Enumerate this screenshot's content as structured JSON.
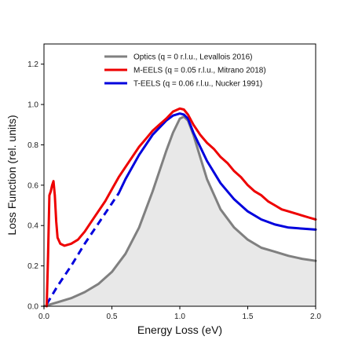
{
  "chart_data": {
    "type": "line",
    "xlabel": "Energy Loss (eV)",
    "ylabel": "Loss Function (rel. units)",
    "xlim": [
      0,
      2.0
    ],
    "ylim": [
      0,
      1.3
    ],
    "x_ticks": [
      {
        "value": 0.0,
        "label": "0.0"
      },
      {
        "value": 0.5,
        "label": "0.5"
      },
      {
        "value": 1.0,
        "label": "1.0"
      },
      {
        "value": 1.5,
        "label": "1.5"
      },
      {
        "value": 2.0,
        "label": "2.0"
      }
    ],
    "y_ticks": [
      {
        "value": 0.0,
        "label": "0.0"
      },
      {
        "value": 0.2,
        "label": "0.2"
      },
      {
        "value": 0.4,
        "label": "0.4"
      },
      {
        "value": 0.6,
        "label": "0.6"
      },
      {
        "value": 0.8,
        "label": "0.8"
      },
      {
        "value": 1.0,
        "label": "1.0"
      },
      {
        "value": 1.2,
        "label": "1.2"
      }
    ],
    "grid": false,
    "legend": {
      "position": "top-right",
      "entries": [
        {
          "text": "Optics    (q = 0 r.l.u., Levallois 2016)",
          "color": "#808080"
        },
        {
          "text": "M-EELS  (q = 0.05 r.l.u., Mitrano 2018)",
          "color": "#ee0000"
        },
        {
          "text": "T-EELS  (q = 0.06 r.l.u., Nucker 1991)",
          "color": "#0000dd"
        }
      ]
    },
    "series": [
      {
        "color": "#808080",
        "fill": "#e8e8e8",
        "style": "solid",
        "points": [
          [
            0.0,
            0.0
          ],
          [
            0.05,
            0.01
          ],
          [
            0.1,
            0.02
          ],
          [
            0.2,
            0.04
          ],
          [
            0.3,
            0.07
          ],
          [
            0.4,
            0.11
          ],
          [
            0.5,
            0.17
          ],
          [
            0.6,
            0.26
          ],
          [
            0.7,
            0.39
          ],
          [
            0.8,
            0.57
          ],
          [
            0.9,
            0.77
          ],
          [
            0.95,
            0.86
          ],
          [
            1.0,
            0.93
          ],
          [
            1.03,
            0.94
          ],
          [
            1.06,
            0.92
          ],
          [
            1.1,
            0.85
          ],
          [
            1.15,
            0.74
          ],
          [
            1.2,
            0.63
          ],
          [
            1.3,
            0.48
          ],
          [
            1.4,
            0.39
          ],
          [
            1.5,
            0.33
          ],
          [
            1.6,
            0.29
          ],
          [
            1.7,
            0.27
          ],
          [
            1.8,
            0.25
          ],
          [
            1.9,
            0.235
          ],
          [
            2.0,
            0.225
          ]
        ]
      },
      {
        "color": "#0000dd",
        "style": "dashed",
        "points": [
          [
            0.02,
            0.01
          ],
          [
            0.1,
            0.1
          ],
          [
            0.2,
            0.2
          ],
          [
            0.3,
            0.31
          ],
          [
            0.4,
            0.41
          ],
          [
            0.5,
            0.51
          ],
          [
            0.55,
            0.56
          ]
        ]
      },
      {
        "color": "#0000dd",
        "style": "solid",
        "points": [
          [
            0.55,
            0.56
          ],
          [
            0.6,
            0.63
          ],
          [
            0.7,
            0.75
          ],
          [
            0.8,
            0.85
          ],
          [
            0.9,
            0.92
          ],
          [
            0.95,
            0.945
          ],
          [
            1.0,
            0.955
          ],
          [
            1.03,
            0.95
          ],
          [
            1.06,
            0.93
          ],
          [
            1.1,
            0.86
          ],
          [
            1.2,
            0.72
          ],
          [
            1.3,
            0.61
          ],
          [
            1.4,
            0.53
          ],
          [
            1.5,
            0.47
          ],
          [
            1.6,
            0.43
          ],
          [
            1.7,
            0.405
          ],
          [
            1.8,
            0.39
          ],
          [
            1.9,
            0.385
          ],
          [
            2.0,
            0.38
          ]
        ]
      },
      {
        "color": "#ee0000",
        "style": "solid",
        "points": [
          [
            0.02,
            0.0
          ],
          [
            0.03,
            0.25
          ],
          [
            0.04,
            0.55
          ],
          [
            0.05,
            0.57
          ],
          [
            0.06,
            0.6
          ],
          [
            0.07,
            0.62
          ],
          [
            0.08,
            0.55
          ],
          [
            0.09,
            0.42
          ],
          [
            0.1,
            0.34
          ],
          [
            0.12,
            0.31
          ],
          [
            0.15,
            0.3
          ],
          [
            0.2,
            0.31
          ],
          [
            0.25,
            0.33
          ],
          [
            0.3,
            0.37
          ],
          [
            0.35,
            0.42
          ],
          [
            0.4,
            0.47
          ],
          [
            0.45,
            0.52
          ],
          [
            0.5,
            0.58
          ],
          [
            0.55,
            0.64
          ],
          [
            0.6,
            0.69
          ],
          [
            0.65,
            0.74
          ],
          [
            0.7,
            0.79
          ],
          [
            0.75,
            0.83
          ],
          [
            0.8,
            0.87
          ],
          [
            0.85,
            0.9
          ],
          [
            0.9,
            0.93
          ],
          [
            0.95,
            0.965
          ],
          [
            1.0,
            0.98
          ],
          [
            1.03,
            0.975
          ],
          [
            1.06,
            0.95
          ],
          [
            1.1,
            0.9
          ],
          [
            1.15,
            0.85
          ],
          [
            1.2,
            0.81
          ],
          [
            1.25,
            0.78
          ],
          [
            1.3,
            0.74
          ],
          [
            1.35,
            0.71
          ],
          [
            1.4,
            0.67
          ],
          [
            1.45,
            0.64
          ],
          [
            1.5,
            0.6
          ],
          [
            1.55,
            0.57
          ],
          [
            1.6,
            0.55
          ],
          [
            1.65,
            0.52
          ],
          [
            1.7,
            0.5
          ],
          [
            1.75,
            0.48
          ],
          [
            1.8,
            0.47
          ],
          [
            1.85,
            0.46
          ],
          [
            1.9,
            0.45
          ],
          [
            1.95,
            0.44
          ],
          [
            2.0,
            0.43
          ]
        ]
      }
    ]
  }
}
